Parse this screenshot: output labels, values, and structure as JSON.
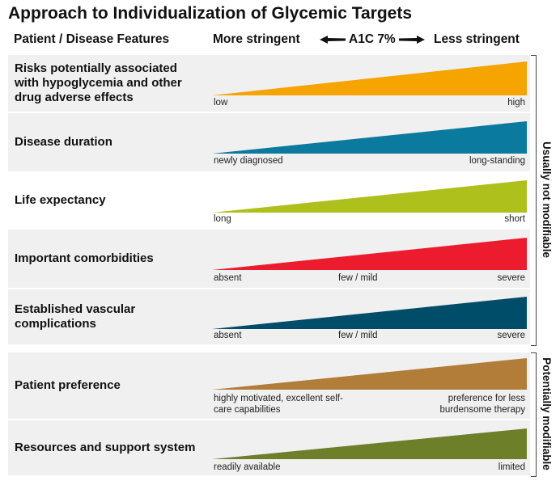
{
  "title": "Approach to Individualization of Glycemic Targets",
  "header": {
    "features": "Patient / Disease Features",
    "more": "More stringent",
    "center": "A1C 7%",
    "less": "Less stringent"
  },
  "rows": [
    {
      "feature": "Risks potentially associated with hypoglycemia and other drug adverse effects",
      "left": "low",
      "mid": "",
      "right": "high",
      "color": "#f5a400"
    },
    {
      "feature": "Disease duration",
      "left": "newly diagnosed",
      "mid": "",
      "right": "long-standing",
      "color": "#0a7a9e"
    },
    {
      "feature": "Life expectancy",
      "left": "long",
      "mid": "",
      "right": "short",
      "color": "#aec01c"
    },
    {
      "feature": "Important comorbidities",
      "left": "absent",
      "mid": "few / mild",
      "right": "severe",
      "color": "#ec1c2e"
    },
    {
      "feature": "Established vascular complications",
      "left": "absent",
      "mid": "few / mild",
      "right": "severe",
      "color": "#004d69"
    },
    {
      "feature": "Patient preference",
      "left": "highly motivated, excellent self-care capabilities",
      "mid": "",
      "right": "preference for less burdensome therapy",
      "color": "#b27c39"
    },
    {
      "feature": "Resources and support system",
      "left": "readily available",
      "mid": "",
      "right": "limited",
      "color": "#6e7f2a"
    }
  ],
  "groups": {
    "not_modifiable": "Usually not modifiable",
    "modifiable": "Potentially modifiable"
  }
}
